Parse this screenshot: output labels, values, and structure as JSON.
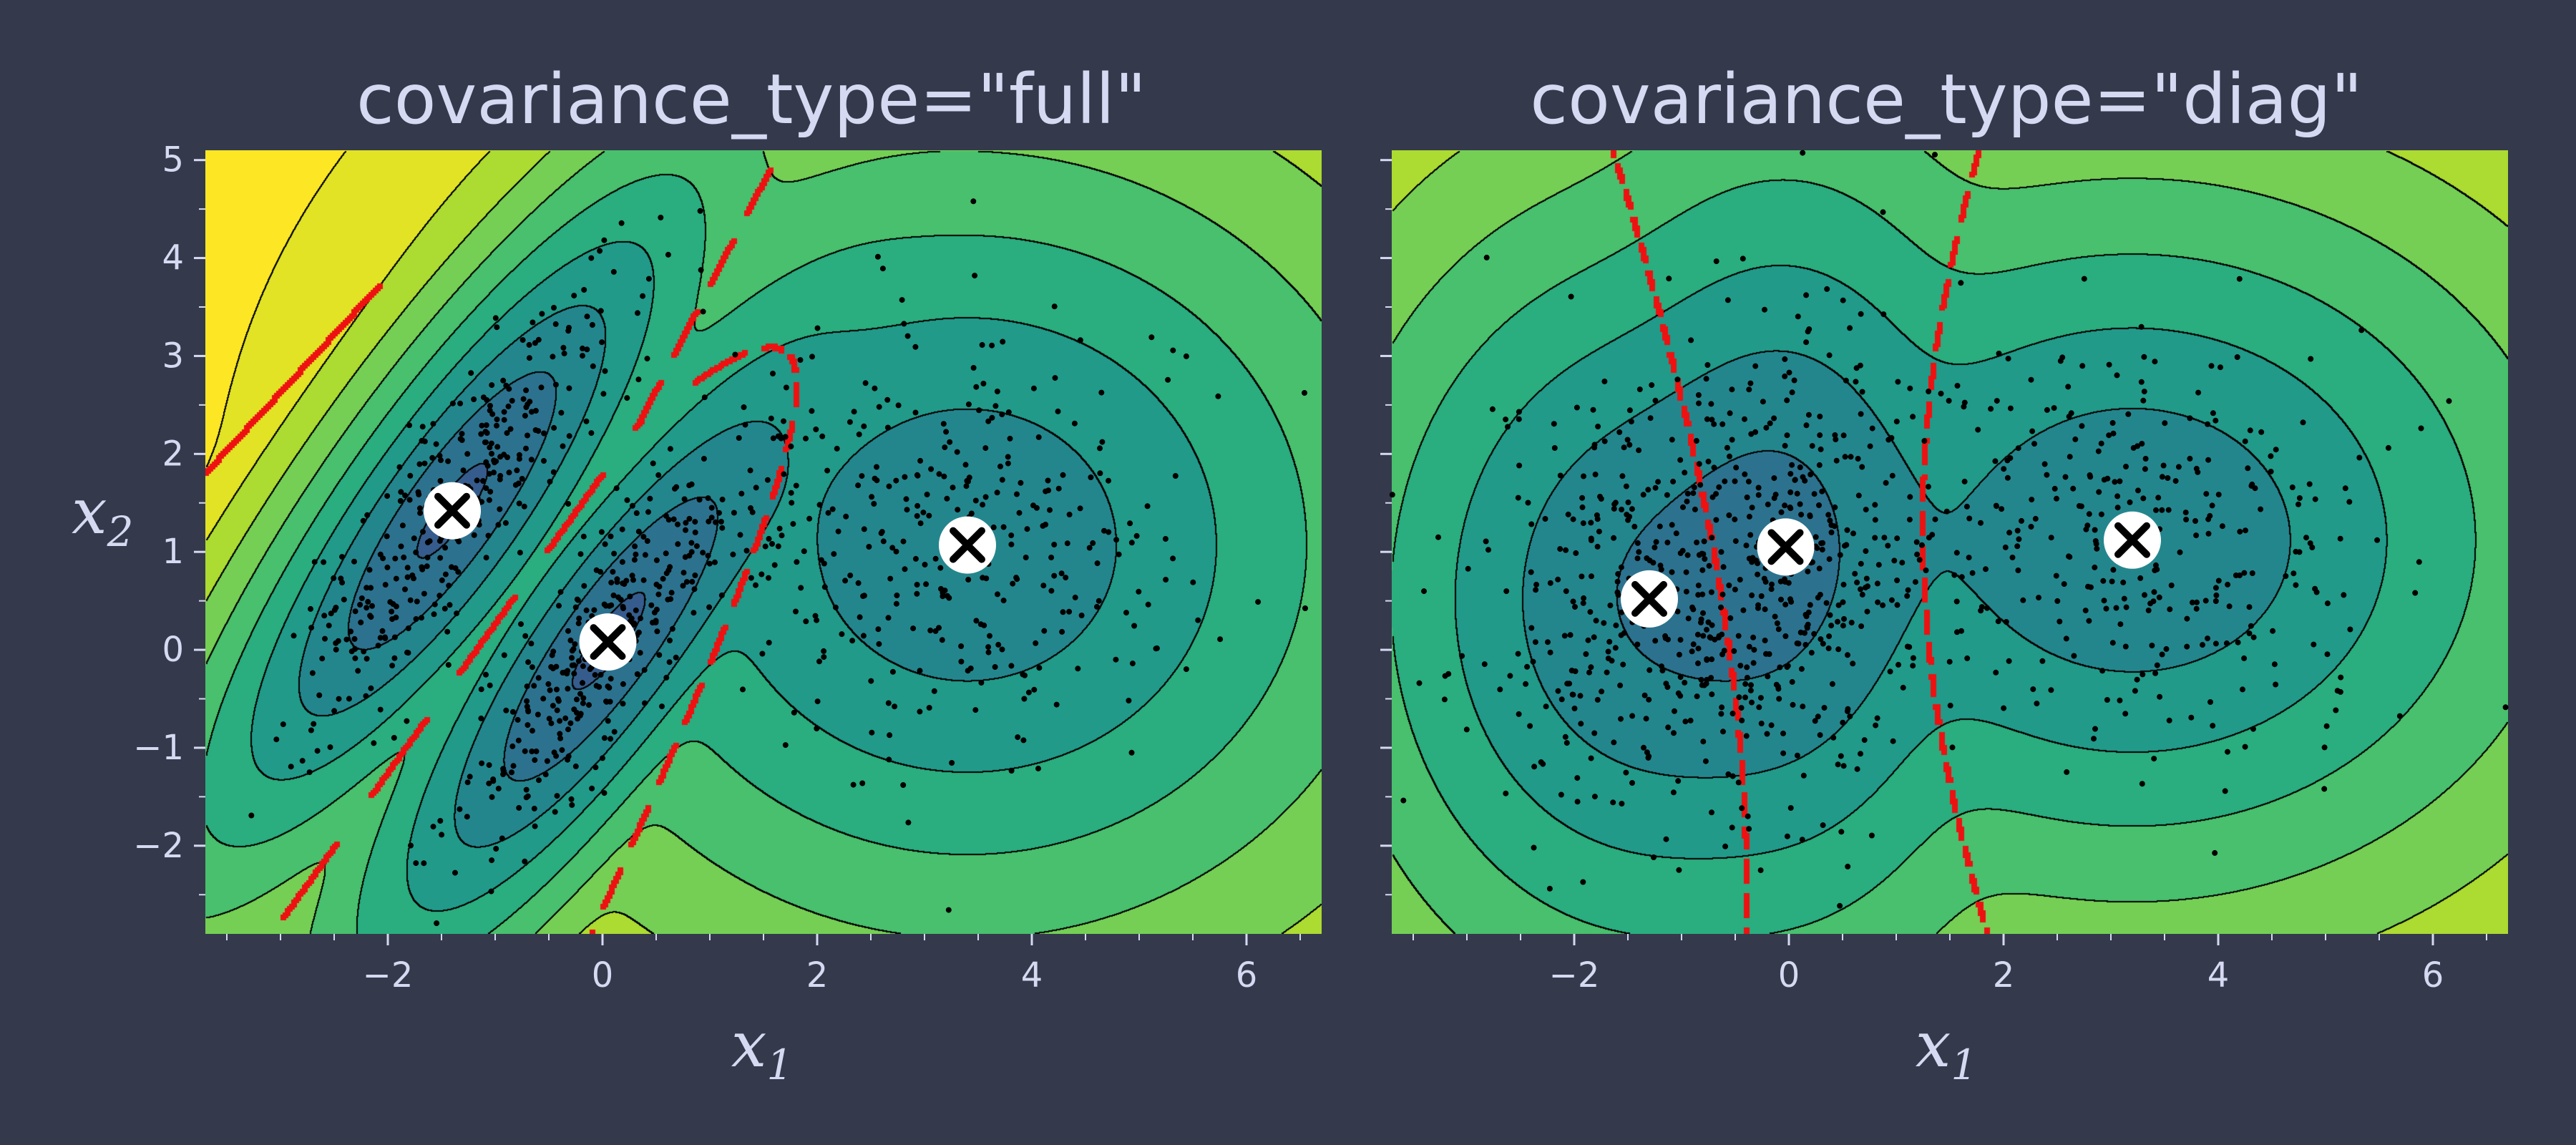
{
  "chart_data": [
    {
      "type": "contour",
      "title": "covariance_type=\"full\"",
      "xlabel": "x",
      "xlabel_sub": "1",
      "ylabel": "x",
      "ylabel_sub": "2",
      "xlim": [
        -3.7,
        6.7
      ],
      "ylim": [
        -2.9,
        5.1
      ],
      "xticks": [
        -2,
        0,
        2,
        4,
        6
      ],
      "xtick_labels": [
        "−2",
        "0",
        "2",
        "4",
        "6"
      ],
      "yticks": [
        -2,
        -1,
        0,
        1,
        2,
        3,
        4,
        5
      ],
      "ytick_labels": [
        "−2",
        "−1",
        "0",
        "1",
        "2",
        "3",
        "4",
        "5"
      ],
      "centroids": [
        {
          "x": -1.4,
          "y": 1.42
        },
        {
          "x": 0.05,
          "y": 0.08
        },
        {
          "x": 3.4,
          "y": 1.07
        }
      ],
      "components": [
        {
          "mean": [
            -1.4,
            1.42
          ],
          "sx": 0.75,
          "sy": 1.1,
          "rho": 0.85,
          "w": 0.33,
          "n": 330
        },
        {
          "mean": [
            0.05,
            0.08
          ],
          "sx": 0.75,
          "sy": 1.1,
          "rho": 0.85,
          "w": 0.33,
          "n": 330
        },
        {
          "mean": [
            3.4,
            1.07
          ],
          "sx": 1.15,
          "sy": 1.15,
          "rho": 0.0,
          "w": 0.34,
          "n": 340
        }
      ],
      "decision_boundary_style": "red dashed",
      "colormap": "viridis",
      "seed": 7
    },
    {
      "type": "contour",
      "title": "covariance_type=\"diag\"",
      "xlabel": "x",
      "xlabel_sub": "1",
      "xlim": [
        -3.7,
        6.7
      ],
      "ylim": [
        -2.9,
        5.1
      ],
      "xticks": [
        -2,
        0,
        2,
        4,
        6
      ],
      "xtick_labels": [
        "−2",
        "0",
        "2",
        "4",
        "6"
      ],
      "yticks": [
        -2,
        -1,
        0,
        1,
        2,
        3,
        4,
        5
      ],
      "ytick_labels": [],
      "centroids": [
        {
          "x": -1.3,
          "y": 0.52
        },
        {
          "x": -0.03,
          "y": 1.05
        },
        {
          "x": 3.2,
          "y": 1.12
        }
      ],
      "components": [
        {
          "mean": [
            -1.3,
            0.52
          ],
          "sx": 0.85,
          "sy": 1.2,
          "rho": 0.0,
          "w": 0.33,
          "n": 330
        },
        {
          "mean": [
            -0.03,
            1.05
          ],
          "sx": 0.7,
          "sy": 1.3,
          "rho": 0.0,
          "w": 0.33,
          "n": 330
        },
        {
          "mean": [
            3.2,
            1.12
          ],
          "sx": 1.15,
          "sy": 1.05,
          "rho": 0.0,
          "w": 0.34,
          "n": 340
        }
      ],
      "decision_boundary_style": "red dashed",
      "colormap": "viridis",
      "seed": 11
    }
  ],
  "colors": {
    "background": "#343a4c",
    "text": "#d6d9f2",
    "boundary": "#ee1111",
    "contour_line": "#000000",
    "points": "#000000",
    "centroid_fill": "#ffffff",
    "centroid_cross": "#000000"
  }
}
